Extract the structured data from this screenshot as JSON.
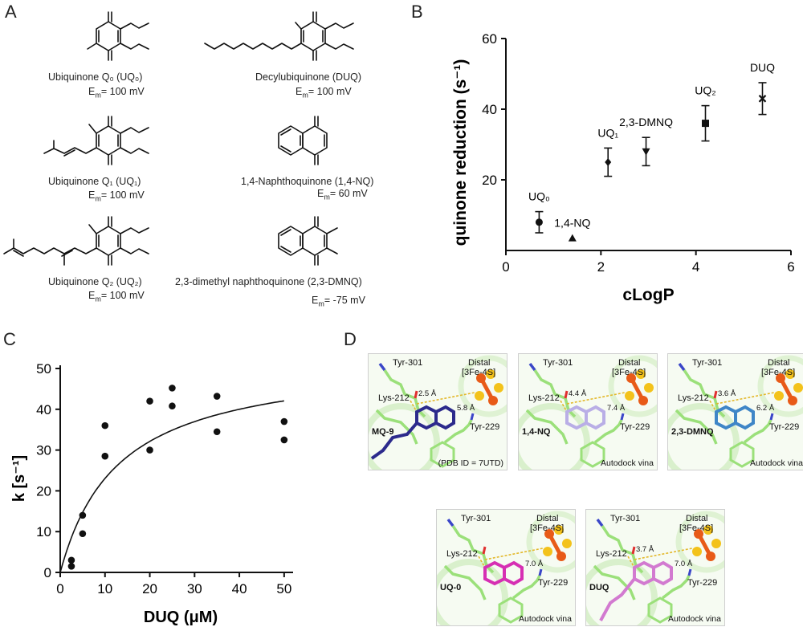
{
  "panels": {
    "a": "A",
    "b": "B",
    "c": "C",
    "d": "D"
  },
  "molecules": [
    {
      "name": "Ubiquinone Q₀ (UQ₀)",
      "em": "100 mV"
    },
    {
      "name": "Decylubiquinone (DUQ)",
      "em": "100 mV"
    },
    {
      "name": "Ubiquinone Q₁ (UQ₁)",
      "em": "100 mV"
    },
    {
      "name": "1,4-Naphthoquinone (1,4-NQ)",
      "em": "60 mV"
    },
    {
      "name": "Ubiquinone Q₂ (UQ₂)",
      "em": "100 mV"
    },
    {
      "name": "2,3-dimethyl naphthoquinone (2,3-DMNQ)",
      "em": "-75 mV"
    }
  ],
  "em_prefix": "E",
  "em_sub": "m",
  "em_eq": "= ",
  "chart_data": [
    {
      "type": "scatter",
      "xlabel": "cLogP",
      "ylabel": "quinone reduction (s⁻¹)",
      "xlim": [
        0,
        6
      ],
      "ylim": [
        0,
        60
      ],
      "xticks": [
        0,
        2,
        4,
        6
      ],
      "yticks": [
        20,
        40,
        60
      ],
      "points": [
        {
          "label": "UQ₀",
          "x": 0.7,
          "y": 8,
          "err": 3,
          "marker": "circle"
        },
        {
          "label": "1,4-NQ",
          "x": 1.4,
          "y": 3.5,
          "err": 0,
          "marker": "triangle-up"
        },
        {
          "label": "UQ₁",
          "x": 2.15,
          "y": 25,
          "err": 4,
          "marker": "diamond"
        },
        {
          "label": "2,3-DMNQ",
          "x": 2.95,
          "y": 28,
          "err": 4,
          "marker": "triangle-down"
        },
        {
          "label": "UQ₂",
          "x": 4.2,
          "y": 36,
          "err": 5,
          "marker": "square"
        },
        {
          "label": "DUQ",
          "x": 5.4,
          "y": 43,
          "err": 4.5,
          "marker": "x"
        }
      ]
    },
    {
      "type": "scatter",
      "xlabel": "DUQ (μM)",
      "ylabel": "k [s⁻¹]",
      "xlim": [
        0,
        52
      ],
      "ylim": [
        0,
        50
      ],
      "xticks": [
        0,
        10,
        20,
        30,
        40,
        50
      ],
      "yticks": [
        0,
        10,
        20,
        30,
        40,
        50
      ],
      "x": [
        2.5,
        2.5,
        5,
        5,
        10,
        10,
        20,
        20,
        25,
        25,
        35,
        35,
        50,
        50
      ],
      "y": [
        3,
        1.5,
        14,
        9.5,
        36,
        28.5,
        42,
        30,
        45.2,
        40.8,
        43.2,
        34.5,
        37,
        32.5
      ],
      "fit": {
        "model": "michaelis-menten",
        "vmax": 53,
        "km": 13
      }
    }
  ],
  "docking": [
    {
      "tyr301": "Tyr-301",
      "lys212": "Lys-212",
      "tyr229": "Tyr-229",
      "distal1": "Distal",
      "distal2": "[3Fe-4S]",
      "d1": "2.5 Å",
      "d2": "5.8 Å",
      "ligand": "MQ-9",
      "footer": "(PDB ID = 7UTD)",
      "color": "#2c2a8c"
    },
    {
      "tyr301": "Tyr-301",
      "lys212": "Lys-212",
      "tyr229": "Tyr-229",
      "distal1": "Distal",
      "distal2": "[3Fe-4S]",
      "d1": "4.4 Å",
      "d2": "7.4 Å",
      "ligand": "1,4-NQ",
      "footer": "Autodock vina",
      "color": "#b9aee6"
    },
    {
      "tyr301": "Tyr-301",
      "lys212": "Lys-212",
      "tyr229": "Tyr-229",
      "distal1": "Distal",
      "distal2": "[3Fe-4S]",
      "d1": "3.6 Å",
      "d2": "6.2 Å",
      "ligand": "2,3-DMNQ",
      "footer": "Autodock vina",
      "color": "#3f86c7"
    },
    {
      "tyr301": "Tyr-301",
      "lys212": "Lys-212",
      "tyr229": "Tyr-229",
      "distal1": "Distal",
      "distal2": "[3Fe-4S]",
      "d1": "",
      "d2": "7.0 Å",
      "ligand": "UQ-0",
      "footer": "Autodock vina",
      "color": "#d62fb3"
    },
    {
      "tyr301": "Tyr-301",
      "lys212": "Lys-212",
      "tyr229": "Tyr-229",
      "distal1": "Distal",
      "distal2": "[3Fe-4S]",
      "d1": "3.7 Å",
      "d2": "7.0 Å",
      "ligand": "DUQ",
      "footer": "Autodock vina",
      "color": "#d27ad0"
    }
  ]
}
